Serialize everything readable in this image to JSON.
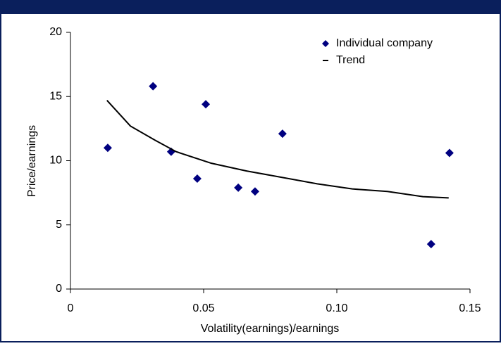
{
  "chart_data": {
    "type": "scatter",
    "x_label": "Volatility(earnings)/earnings",
    "y_label": "Price/earnings",
    "xlim": [
      0,
      0.15
    ],
    "ylim": [
      0,
      20
    ],
    "xticks": [
      0,
      0.05,
      {
        "value": 0.1,
        "label": "0.10"
      },
      0.15
    ],
    "yticks": [
      0,
      5,
      10,
      15,
      20
    ],
    "legend": "upper right",
    "series": [
      {
        "name": "Individual company",
        "type": "scatter",
        "color": "#000080",
        "x": [
          0.014,
          0.031,
          0.0378,
          0.0476,
          0.0508,
          0.063,
          0.0693,
          0.0796,
          0.1354,
          0.1423
        ],
        "values": [
          11.0,
          15.8,
          10.7,
          8.6,
          14.4,
          7.9,
          7.6,
          12.1,
          3.5,
          10.6
        ]
      },
      {
        "name": "Trend",
        "type": "line",
        "color": "#000000",
        "x": [
          0.0137,
          0.0225,
          0.0317,
          0.0397,
          0.0529,
          0.0661,
          0.0794,
          0.0926,
          0.1058,
          0.119,
          0.1323,
          0.142
        ],
        "values": [
          14.7,
          12.7,
          11.6,
          10.7,
          9.8,
          9.2,
          8.7,
          8.2,
          7.8,
          7.6,
          7.2,
          7.1
        ]
      }
    ]
  }
}
